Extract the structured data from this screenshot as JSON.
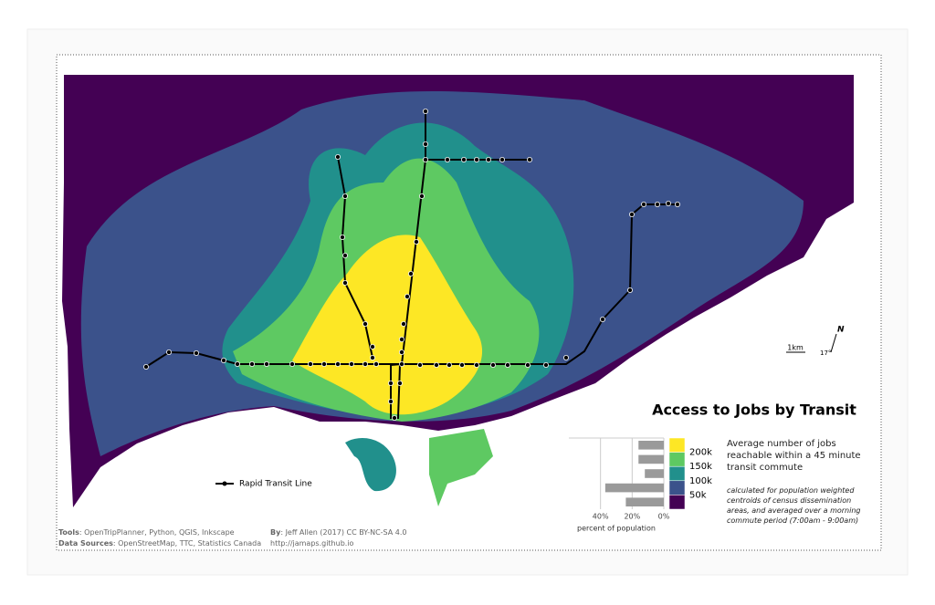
{
  "title": "Access to Jobs by Transit",
  "description": "Average number of jobs reachable within a 45 minute transit commute",
  "note": "calculated for population weighted centroids of census dissemination areas, and averaged over a morning commute period (7:00am - 9:00am)",
  "transit_legend": "Rapid Transit Line",
  "scale_bar": "1km",
  "north": "N",
  "declination": "17°",
  "credits": {
    "tools_label": "Tools",
    "tools": "OpenTripPlanner, Python, QGIS, Inkscape",
    "sources_label": "Data Sources",
    "sources": "OpenStreetMap, TTC, Statistics Canada",
    "by_label": "By",
    "by": "Jeff Allen (2017) CC BY-NC-SA 4.0",
    "url": "http://jamaps.github.io"
  },
  "chart_data": {
    "type": "bar",
    "orientation": "horizontal",
    "xlabel": "percent of population",
    "categories": [
      "200k",
      "150k",
      "100k",
      "50k",
      null
    ],
    "colors": [
      "#fde725",
      "#5ec962",
      "#21908c",
      "#3b528b",
      "#440154"
    ],
    "bar_color": "#9a9a9a",
    "values": [
      16,
      16,
      12,
      37,
      24
    ],
    "xlim": [
      60,
      0
    ],
    "xticks": [
      {
        "value": 40,
        "label": "40%"
      },
      {
        "value": 20,
        "label": "20%"
      },
      {
        "value": 0,
        "label": "0%"
      }
    ],
    "grid": true
  }
}
